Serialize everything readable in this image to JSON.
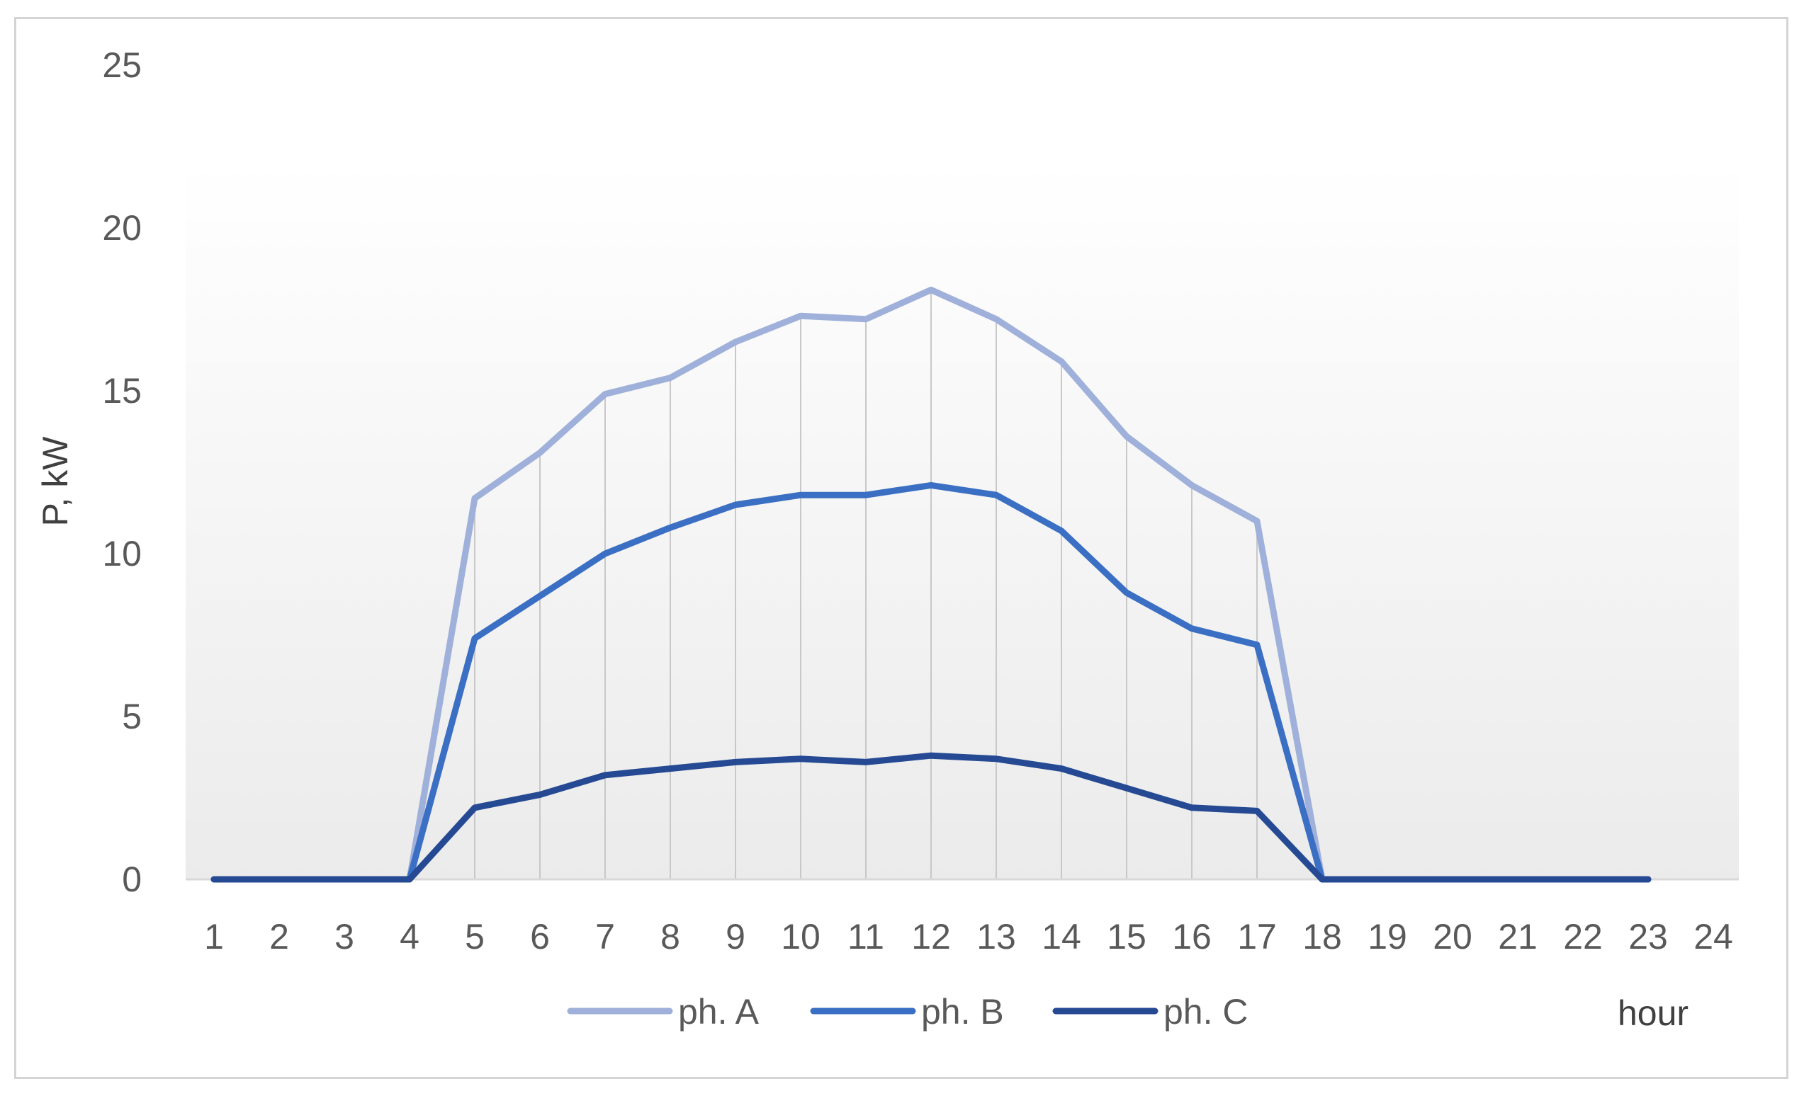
{
  "chart_data": {
    "type": "line",
    "ylabel": "P, kW",
    "xlabel": "hour",
    "ylim": [
      0,
      25
    ],
    "yticks": [
      0,
      5,
      10,
      15,
      20,
      25
    ],
    "categories": [
      "1",
      "2",
      "3",
      "4",
      "5",
      "6",
      "7",
      "8",
      "9",
      "10",
      "11",
      "12",
      "13",
      "14",
      "15",
      "16",
      "17",
      "18",
      "19",
      "20",
      "21",
      "22",
      "23",
      "24"
    ],
    "grid": "vertical drop lines at hours 5–17",
    "legend_position": "bottom",
    "series": [
      {
        "name": "ph. A",
        "color": "#9fb0da",
        "x": [
          1,
          2,
          3,
          4,
          5,
          6,
          7,
          8,
          9,
          10,
          11,
          12,
          13,
          14,
          15,
          16,
          17,
          18,
          19,
          20,
          21,
          22,
          23
        ],
        "values": [
          0,
          0,
          0,
          0,
          11.7,
          13.1,
          14.9,
          15.4,
          16.5,
          17.3,
          17.2,
          18.1,
          17.2,
          15.9,
          13.6,
          12.1,
          11.0,
          0,
          0,
          0,
          0,
          0,
          0
        ]
      },
      {
        "name": "ph. B",
        "color": "#3a6fc4",
        "x": [
          1,
          2,
          3,
          4,
          5,
          6,
          7,
          8,
          9,
          10,
          11,
          12,
          13,
          14,
          15,
          16,
          17,
          18,
          19,
          20,
          21,
          22,
          23
        ],
        "values": [
          0,
          0,
          0,
          0,
          7.4,
          8.7,
          10.0,
          10.8,
          11.5,
          11.8,
          11.8,
          12.1,
          11.8,
          10.7,
          8.8,
          7.7,
          7.2,
          0,
          0,
          0,
          0,
          0,
          0
        ]
      },
      {
        "name": "ph. C",
        "color": "#254a93",
        "x": [
          1,
          2,
          3,
          4,
          5,
          6,
          7,
          8,
          9,
          10,
          11,
          12,
          13,
          14,
          15,
          16,
          17,
          18,
          19,
          20,
          21,
          22,
          23
        ],
        "values": [
          0,
          0,
          0,
          0,
          2.2,
          2.6,
          3.2,
          3.4,
          3.6,
          3.7,
          3.6,
          3.8,
          3.7,
          3.4,
          2.8,
          2.2,
          2.1,
          0,
          0,
          0,
          0,
          0,
          0
        ]
      }
    ]
  }
}
